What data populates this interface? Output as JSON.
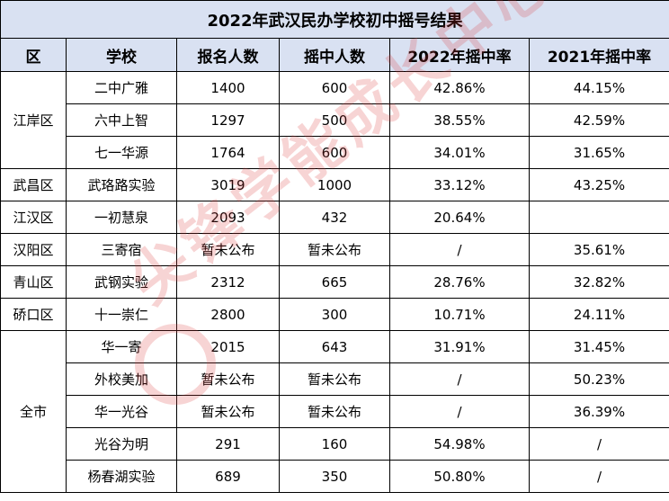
{
  "title": "2022年武汉民办学校初中摇号结果",
  "headers": [
    "区",
    "学校",
    "报名人数",
    "摇中人数",
    "2022年摇中率",
    "2021年摇中率"
  ],
  "regions": {
    "jiangan": "江岸区",
    "wuchang": "武昌区",
    "jianghan": "江汉区",
    "hanyang": "汉阳区",
    "qingshan": "青山区",
    "qiaokou": "硚口区",
    "all": "全市"
  },
  "rows": [
    {
      "school": "二中广雅",
      "applicants": "1400",
      "admitted": "600",
      "rate_2022": "42.86%",
      "rate_2021": "44.15%"
    },
    {
      "school": "六中上智",
      "applicants": "1297",
      "admitted": "500",
      "rate_2022": "38.55%",
      "rate_2021": "42.59%"
    },
    {
      "school": "七一华源",
      "applicants": "1764",
      "admitted": "600",
      "rate_2022": "34.01%",
      "rate_2021": "31.65%"
    },
    {
      "school": "武珞路实验",
      "applicants": "3019",
      "admitted": "1000",
      "rate_2022": "33.12%",
      "rate_2021": "43.25%"
    },
    {
      "school": "一初慧泉",
      "applicants": "2093",
      "admitted": "432",
      "rate_2022": "20.64%",
      "rate_2021": ""
    },
    {
      "school": "三寄宿",
      "applicants": "暂未公布",
      "admitted": "暂未公布",
      "rate_2022": "/",
      "rate_2021": "35.61%"
    },
    {
      "school": "武钢实验",
      "applicants": "2312",
      "admitted": "665",
      "rate_2022": "28.76%",
      "rate_2021": "32.82%"
    },
    {
      "school": "十一崇仁",
      "applicants": "2800",
      "admitted": "300",
      "rate_2022": "10.71%",
      "rate_2021": "24.11%"
    },
    {
      "school": "华一寄",
      "applicants": "2015",
      "admitted": "643",
      "rate_2022": "31.91%",
      "rate_2021": "31.45%"
    },
    {
      "school": "外校美加",
      "applicants": "暂未公布",
      "admitted": "暂未公布",
      "rate_2022": "/",
      "rate_2021": "50.23%"
    },
    {
      "school": "华一光谷",
      "applicants": "暂未公布",
      "admitted": "暂未公布",
      "rate_2022": "/",
      "rate_2021": "36.39%"
    },
    {
      "school": "光谷为明",
      "applicants": "291",
      "admitted": "160",
      "rate_2022": "54.98%",
      "rate_2021": "/"
    },
    {
      "school": "杨春湖实验",
      "applicants": "689",
      "admitted": "350",
      "rate_2022": "50.80%",
      "rate_2021": "/"
    }
  ],
  "watermark": "尖锋学能成长中心",
  "colors": {
    "header_bg": "#d9e1f2",
    "watermark": "#dc3c3c"
  }
}
